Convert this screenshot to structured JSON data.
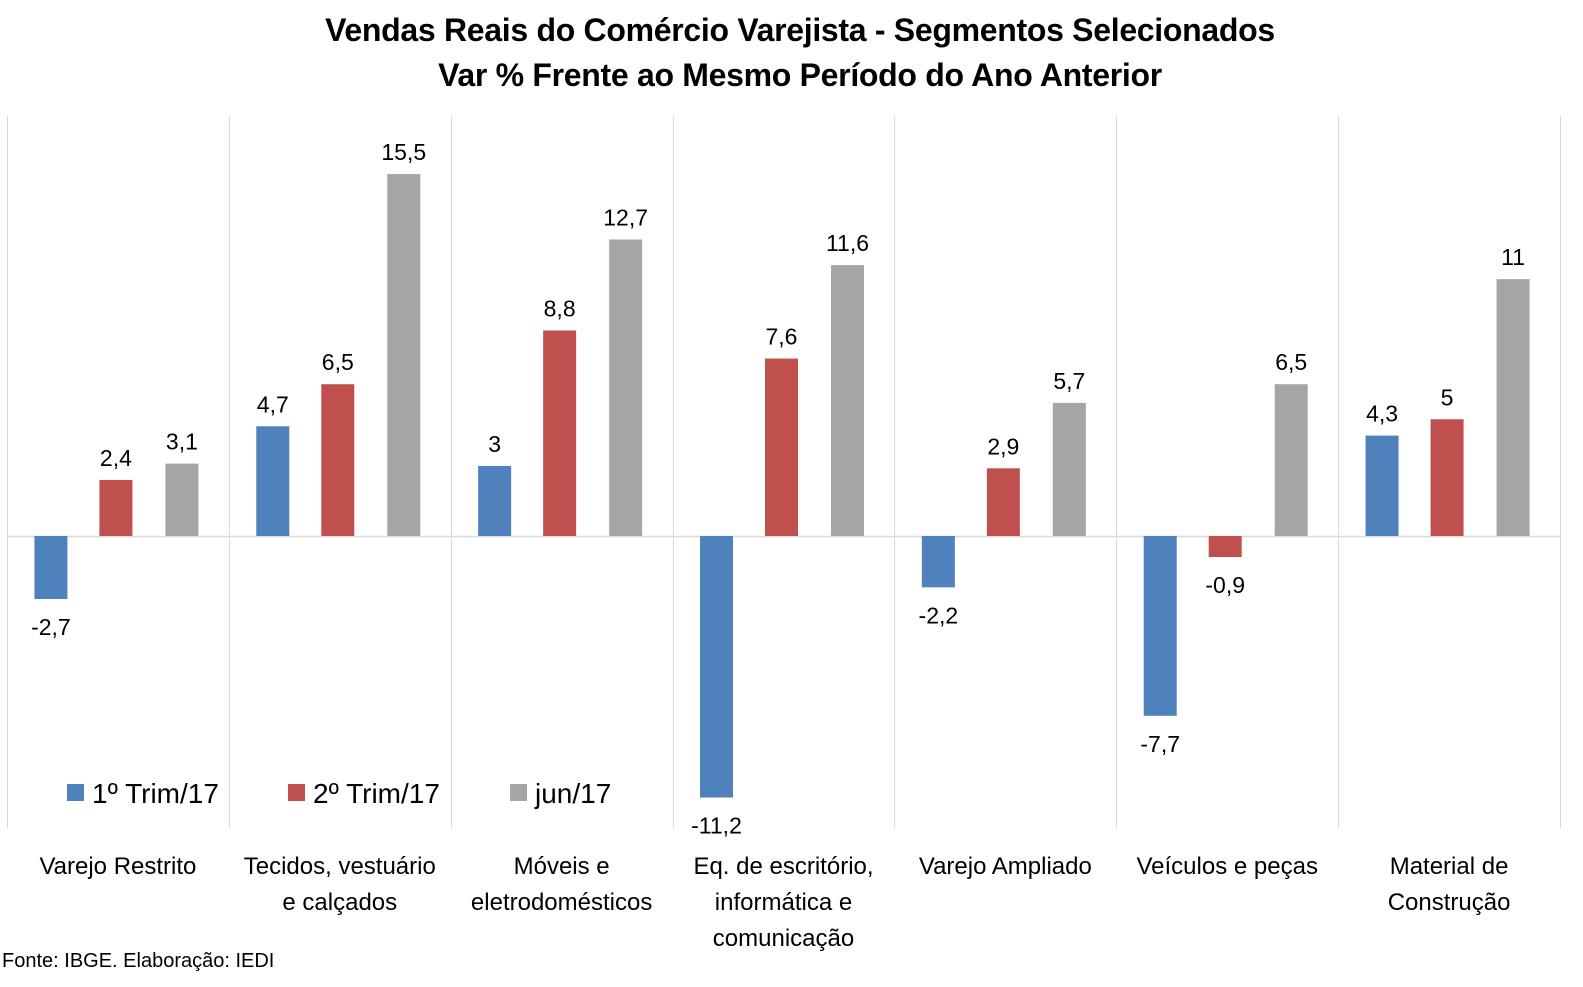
{
  "chart_data": {
    "type": "bar",
    "title": "Vendas Reais do Comércio Varejista - Segmentos Selecionados",
    "subtitle": "Var % Frente ao Mesmo Período do Ano Anterior",
    "categories": [
      [
        "Varejo Restrito"
      ],
      [
        "Tecidos, vestuário",
        "e calçados"
      ],
      [
        "Móveis e",
        "eletrodomésticos"
      ],
      [
        "Eq. de escritório,",
        "informática e",
        "comunicação"
      ],
      [
        "Varejo Ampliado"
      ],
      [
        "Veículos e peças"
      ],
      [
        "Material de",
        "Construção"
      ]
    ],
    "series": [
      {
        "name": "1º Trim/17",
        "color": "#4F81BD",
        "values": [
          -2.7,
          4.7,
          3,
          -11.2,
          -2.2,
          -7.7,
          4.3
        ],
        "labels": [
          "-2,7",
          "4,7",
          "3",
          "-11,2",
          "-2,2",
          "-7,7",
          "4,3"
        ]
      },
      {
        "name": "2º Trim/17",
        "color": "#C0504D",
        "values": [
          2.4,
          6.5,
          8.8,
          7.6,
          2.9,
          -0.9,
          5
        ],
        "labels": [
          "2,4",
          "6,5",
          "8,8",
          "7,6",
          "2,9",
          "-0,9",
          "5"
        ]
      },
      {
        "name": "jun/17",
        "color": "#A5A5A5",
        "values": [
          3.1,
          15.5,
          12.7,
          11.6,
          5.7,
          6.5,
          11
        ],
        "labels": [
          "3,1",
          "15,5",
          "12,7",
          "11,6",
          "5,7",
          "6,5",
          "11"
        ]
      }
    ],
    "ylim": [
      -12.4,
      18
    ],
    "grid": "vertical category separators",
    "legend_position": "bottom-left"
  },
  "source_note": "Fonte: IBGE. Elaboração: IEDI"
}
